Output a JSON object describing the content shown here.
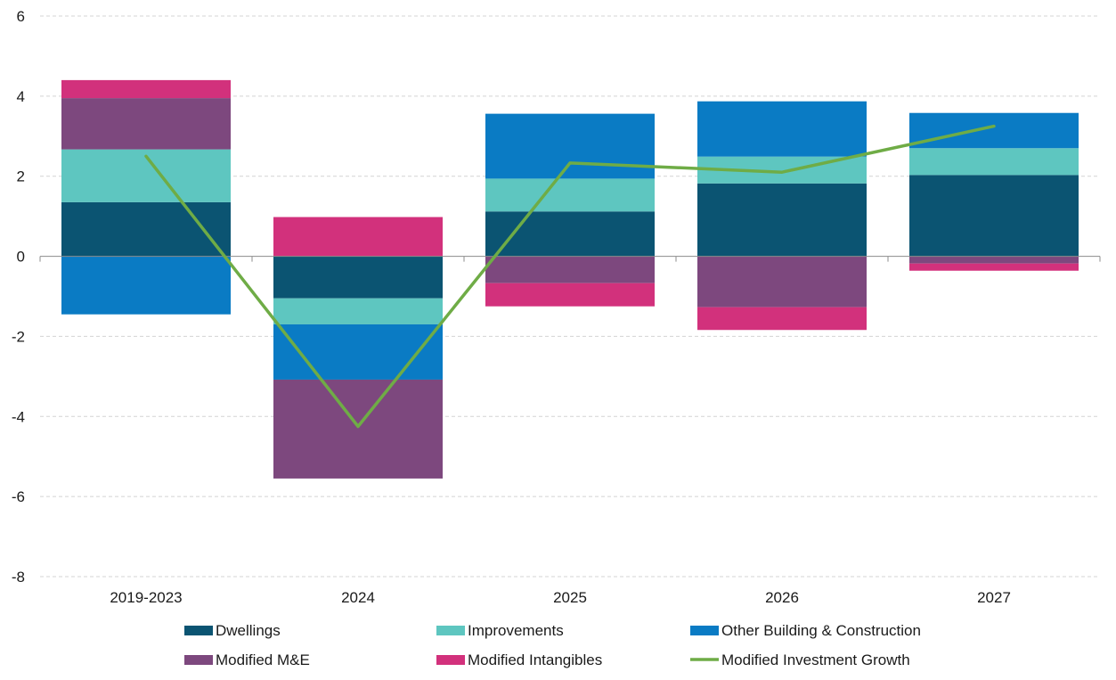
{
  "chart_data": {
    "type": "bar",
    "stacked": true,
    "title": "",
    "xlabel": "",
    "ylabel": "",
    "ylim": [
      -8,
      6
    ],
    "yticks": [
      6,
      4,
      2,
      0,
      -2,
      -4,
      -6,
      -8
    ],
    "grid": true,
    "legend_position": "bottom",
    "categories": [
      "2019-2023",
      "2024",
      "2025",
      "2026",
      "2027"
    ],
    "series": [
      {
        "name": "Dwellings",
        "kind": "bar",
        "color": "#0b5472",
        "values": [
          1.35,
          -1.05,
          1.12,
          1.82,
          2.03
        ]
      },
      {
        "name": "Improvements",
        "kind": "bar",
        "color": "#5ec6c0",
        "values": [
          1.32,
          -0.65,
          0.82,
          0.67,
          0.67
        ]
      },
      {
        "name": "Other Building & Construction",
        "kind": "bar",
        "color": "#0a7bc4",
        "values": [
          -1.45,
          -1.38,
          1.62,
          1.38,
          0.88
        ]
      },
      {
        "name": "Modified M&E",
        "kind": "bar",
        "color": "#7d487e",
        "values": [
          1.28,
          -2.47,
          -0.67,
          -1.27,
          -0.18
        ]
      },
      {
        "name": "Modified Intangibles",
        "kind": "bar",
        "color": "#d2317c",
        "values": [
          0.45,
          0.98,
          -0.58,
          -0.57,
          -0.18
        ]
      },
      {
        "name": "Modified Investment Growth",
        "kind": "line",
        "color": "#6fac46",
        "values": [
          2.5,
          -4.25,
          2.33,
          2.1,
          3.25
        ]
      }
    ]
  }
}
